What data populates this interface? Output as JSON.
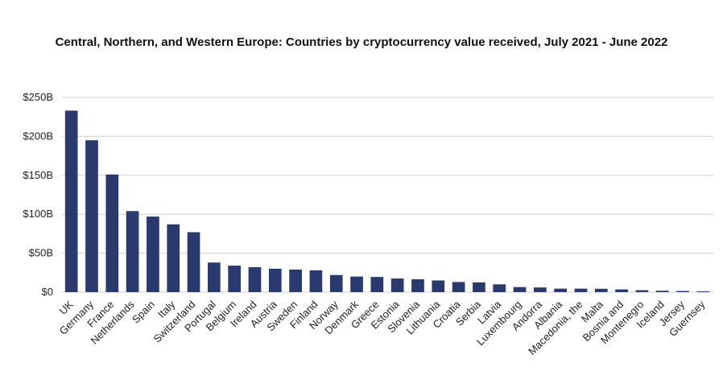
{
  "chart_data": {
    "type": "bar",
    "title": "Central, Northern, and Western Europe: Countries by cryptocurrency value received, July 2021 - June 2022",
    "xlabel": "",
    "ylabel": "",
    "ylim": [
      0,
      250
    ],
    "yticks": [
      0,
      50,
      100,
      150,
      200,
      250
    ],
    "ytick_labels": [
      "$0",
      "$50B",
      "$100B",
      "$150B",
      "$200B",
      "$250B"
    ],
    "grid": true,
    "bar_color": "#2b3a6e",
    "grid_color": "#d0d0d0",
    "categories": [
      "UK",
      "Germany",
      "France",
      "Netherlands",
      "Spain",
      "Italy",
      "Switzerland",
      "Portugal",
      "Belgium",
      "Ireland",
      "Austria",
      "Sweden",
      "Finland",
      "Norway",
      "Denmark",
      "Greece",
      "Estonia",
      "Slovenia",
      "Lithuania",
      "Croatia",
      "Serbia",
      "Latvia",
      "Luxembourg",
      "Andorra",
      "Albania",
      "Macedonia, the",
      "Malta",
      "Bosnia and",
      "Montenegro",
      "Iceland",
      "Jersey",
      "Guernsey"
    ],
    "values": [
      233,
      195,
      151,
      104,
      97,
      87,
      77,
      38,
      34,
      32,
      30,
      29,
      28,
      22,
      20,
      19.5,
      17.5,
      16.5,
      15,
      13,
      12.5,
      10,
      6.5,
      6,
      4.5,
      4.5,
      4.3,
      3.5,
      2.5,
      1.8,
      1.5,
      1
    ]
  }
}
